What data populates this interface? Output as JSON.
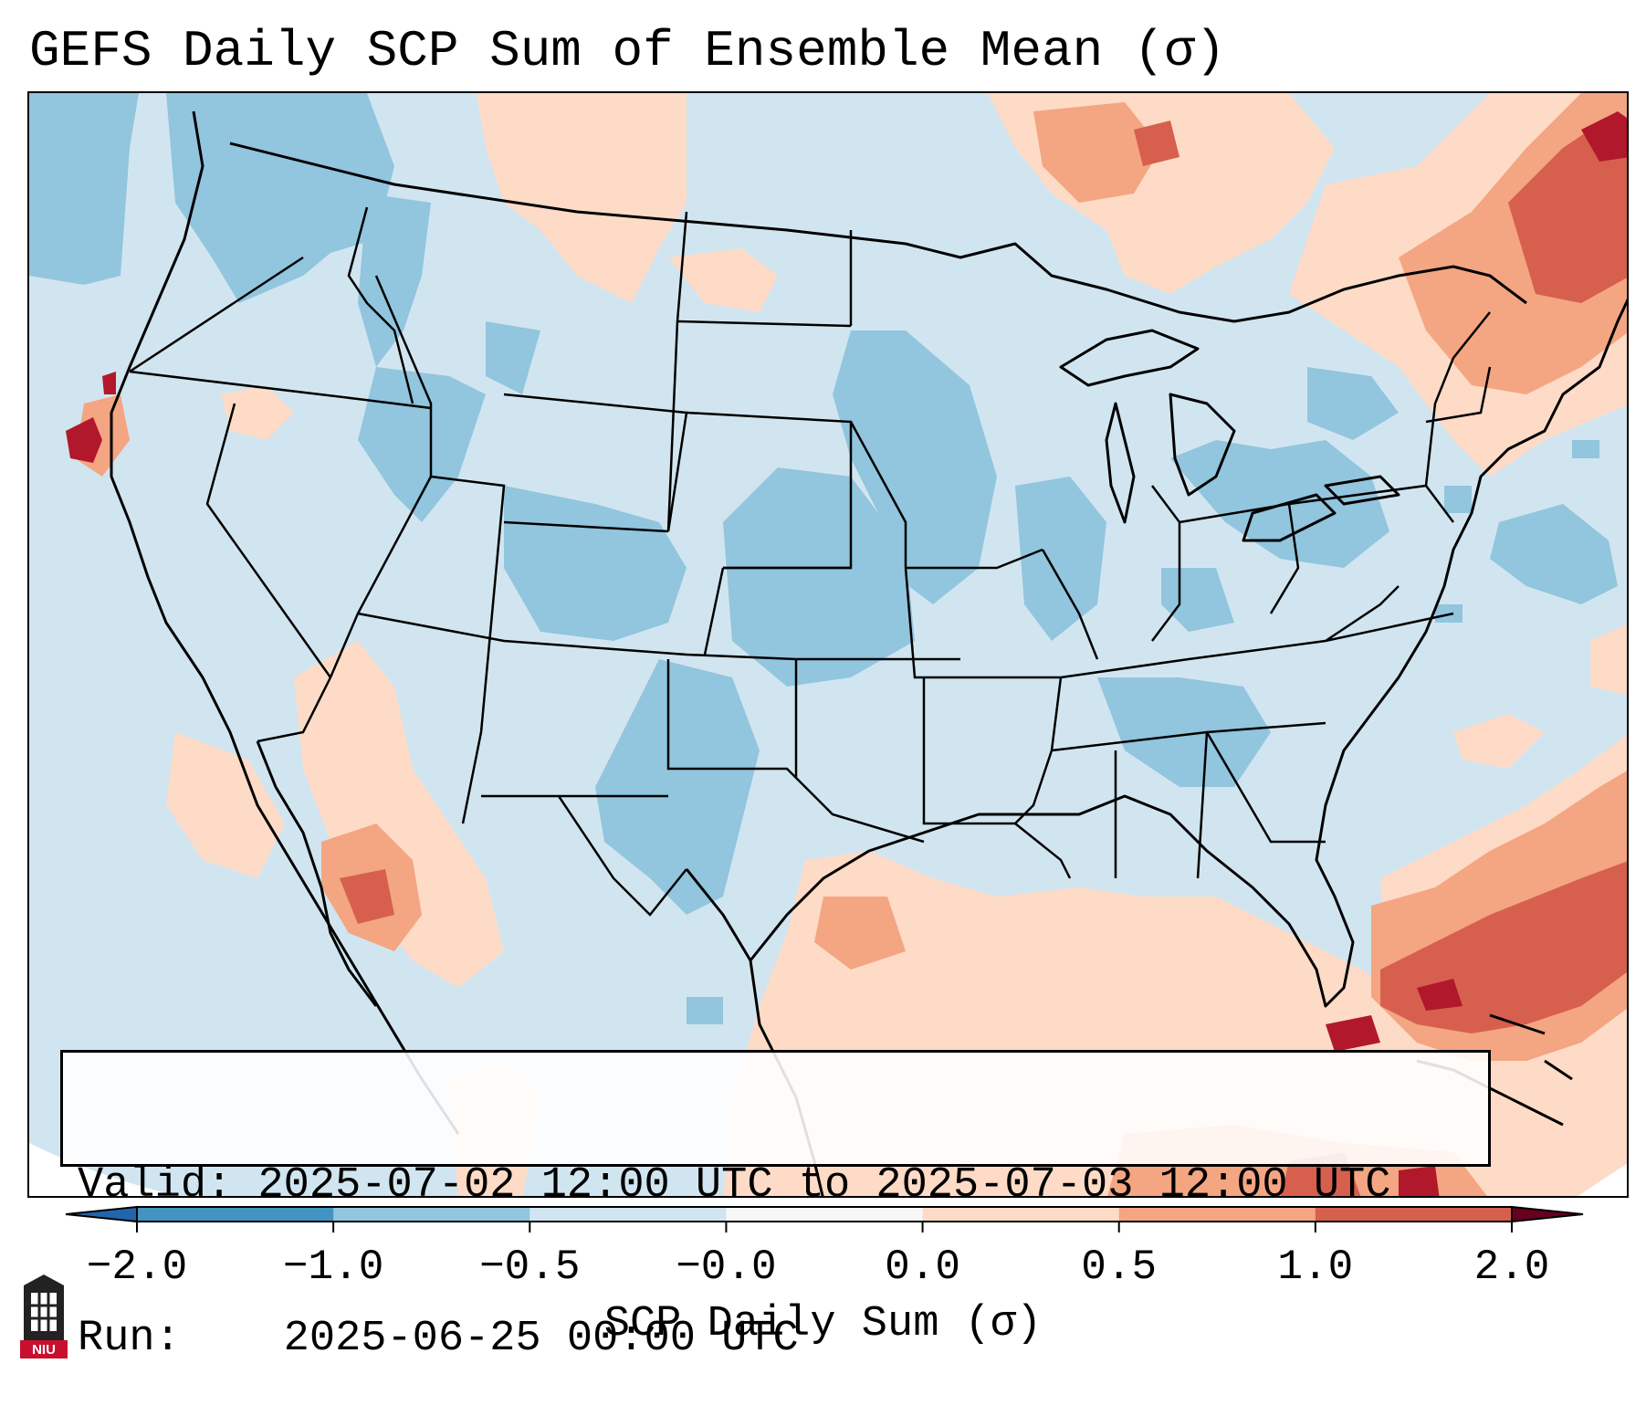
{
  "title": "GEFS Daily SCP Sum of Ensemble Mean (σ)",
  "info": {
    "valid_label": "Valid:",
    "valid_value": "2025-07-02 12:00 UTC to 2025-07-03 12:00 UTC",
    "run_label": "Run:",
    "run_value": "2025-06-25 00:00 UTC"
  },
  "colorbar": {
    "label": "SCP Daily Sum (σ)",
    "ticks": [
      "−2.0",
      "−1.0",
      "−0.5",
      "−0.0",
      "0.0",
      "0.5",
      "1.0",
      "2.0"
    ],
    "colors": [
      "#4393c3",
      "#92c5de",
      "#d1e5f0",
      "#f7f7f7",
      "#fddbc7",
      "#f4a582",
      "#d6604d",
      "#b2182b"
    ]
  },
  "logo_text": "NIU",
  "colors": {
    "ocean_background": "#d1e5f0",
    "negative_light": "#d1e5f0",
    "negative_medium": "#92c5de",
    "negative_strong": "#4393c3",
    "positive_light": "#fddbc7",
    "positive_medium": "#f4a582",
    "positive_strong": "#d6604d",
    "positive_max": "#b2182b"
  }
}
